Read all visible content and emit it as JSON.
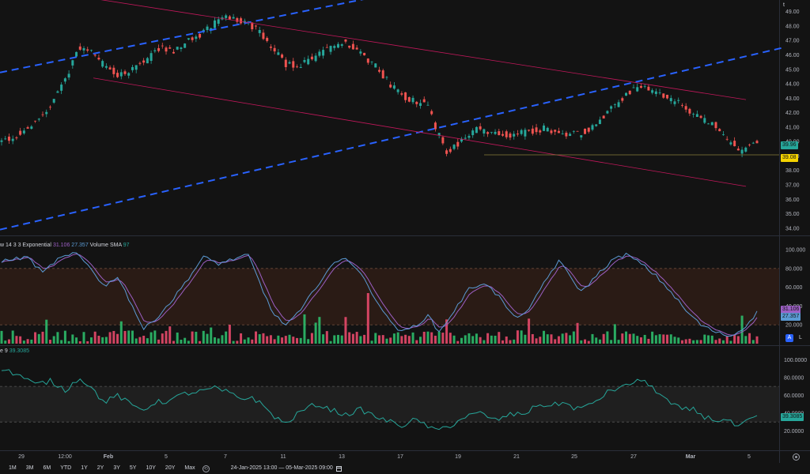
{
  "colors": {
    "background": "#131313",
    "up": "#26a69a",
    "down": "#ef5350",
    "up_bright": "#2ebd6b",
    "down_bright": "#e84a6b",
    "trend_blue": "#2962ff",
    "channel_red": "#c2185b",
    "stoch_k": "#5b9bd5",
    "stoch_d": "#9c5fc4",
    "rsi_line": "#26a69a",
    "stoch_band": "#2a1b15",
    "rsi_band": "#1f1f1f"
  },
  "price_scale": {
    "ticks": [
      "49.00",
      "48.00",
      "47.00",
      "46.00",
      "45.00",
      "44.00",
      "43.00",
      "42.00",
      "41.00",
      "40.00",
      "39.00",
      "38.00",
      "37.00",
      "36.00",
      "35.00",
      "34.00"
    ],
    "last_price": "39.96",
    "level_price": "39.08",
    "top_icon": "t"
  },
  "stoch_pane": {
    "legend_prefix": "w 14 3 3 Exponential",
    "k_value": "31.106",
    "d_value": "27.357",
    "volume_label": "Volume SMA",
    "volume_value": "97",
    "ticks": [
      "100.000",
      "80.000",
      "60.000",
      "40.000",
      "20.000"
    ],
    "badge_k": "31.106",
    "badge_d": "27.357",
    "scale_a": "A",
    "scale_l": "L"
  },
  "rsi_pane": {
    "legend_prefix": "e 9",
    "value": "39.3085",
    "ticks": [
      "100.0000",
      "80.0000",
      "60.0000",
      "40.0000",
      "20.0000"
    ],
    "badge": "39.3085"
  },
  "time_axis": {
    "labels": [
      "29",
      "12:00",
      "Feb",
      "5",
      "7",
      "11",
      "13",
      "17",
      "19",
      "21",
      "25",
      "27",
      "Mar",
      "5"
    ]
  },
  "bottom_bar": {
    "ranges": [
      "1M",
      "3M",
      "6M",
      "YTD",
      "1Y",
      "2Y",
      "3Y",
      "5Y",
      "10Y",
      "20Y",
      "Max"
    ],
    "date_range": "24-Jan-2025 13:00 — 05-Mar-2025 09:00"
  },
  "chart_data": {
    "type": "candlestick",
    "title": "",
    "ylim": [
      33.5,
      49.8
    ],
    "time_range": [
      "24-Jan-2025 13:00",
      "05-Mar-2025 09:00"
    ],
    "grid": false,
    "close_anchors": [
      [
        0,
        40.0
      ],
      [
        10,
        40.5
      ],
      [
        22,
        41.8
      ],
      [
        28,
        43.0
      ],
      [
        35,
        44.5
      ],
      [
        40,
        46.4
      ],
      [
        44,
        46.6
      ],
      [
        48,
        46.2
      ],
      [
        55,
        45.2
      ],
      [
        62,
        44.6
      ],
      [
        70,
        45.0
      ],
      [
        78,
        45.6
      ],
      [
        85,
        46.6
      ],
      [
        92,
        46.3
      ],
      [
        100,
        47.0
      ],
      [
        108,
        47.5
      ],
      [
        115,
        48.3
      ],
      [
        122,
        48.7
      ],
      [
        130,
        48.3
      ],
      [
        138,
        47.6
      ],
      [
        145,
        46.4
      ],
      [
        152,
        45.3
      ],
      [
        160,
        45.3
      ],
      [
        168,
        45.8
      ],
      [
        176,
        46.6
      ],
      [
        184,
        46.9
      ],
      [
        192,
        46.2
      ],
      [
        200,
        45.2
      ],
      [
        208,
        43.9
      ],
      [
        214,
        43.2
      ],
      [
        222,
        42.8
      ],
      [
        228,
        42.5
      ],
      [
        232,
        40.9
      ],
      [
        238,
        39.3
      ],
      [
        246,
        40.1
      ],
      [
        254,
        40.8
      ],
      [
        262,
        40.7
      ],
      [
        270,
        40.4
      ],
      [
        280,
        40.6
      ],
      [
        290,
        40.9
      ],
      [
        300,
        40.5
      ],
      [
        310,
        40.6
      ],
      [
        318,
        41.2
      ],
      [
        326,
        42.2
      ],
      [
        334,
        43.3
      ],
      [
        340,
        43.8
      ],
      [
        346,
        43.6
      ],
      [
        352,
        43.2
      ],
      [
        360,
        42.8
      ],
      [
        368,
        42.1
      ],
      [
        376,
        41.4
      ],
      [
        384,
        40.9
      ],
      [
        390,
        39.9
      ],
      [
        396,
        39.3
      ],
      [
        400,
        39.7
      ],
      [
        404,
        39.96
      ]
    ],
    "channel": {
      "upper_line": [
        [
          1.05,
          49.9
        ],
        [
          943,
          42.9
        ]
      ],
      "lower_line": [
        [
          118,
          44.4
        ],
        [
          943,
          36.9
        ]
      ]
    },
    "trend_lines": {
      "upper": [
        [
          0,
          45.0
        ],
        [
          473,
          50.0
        ]
      ],
      "lower": [
        [
          0,
          33.9
        ],
        [
          990,
          46.5
        ]
      ]
    },
    "horizontal_level": 39.08,
    "stochastic": {
      "k_last": 31.106,
      "d_last": 27.357,
      "upper_band": 80,
      "lower_band": 20,
      "k_anchors": [
        [
          0,
          88
        ],
        [
          14,
          92
        ],
        [
          22,
          75
        ],
        [
          30,
          90
        ],
        [
          40,
          96
        ],
        [
          48,
          80
        ],
        [
          55,
          60
        ],
        [
          62,
          72
        ],
        [
          70,
          40
        ],
        [
          76,
          15
        ],
        [
          84,
          30
        ],
        [
          92,
          48
        ],
        [
          100,
          70
        ],
        [
          108,
          92
        ],
        [
          116,
          85
        ],
        [
          124,
          90
        ],
        [
          132,
          94
        ],
        [
          140,
          55
        ],
        [
          146,
          30
        ],
        [
          152,
          20
        ],
        [
          160,
          35
        ],
        [
          168,
          60
        ],
        [
          176,
          82
        ],
        [
          184,
          92
        ],
        [
          190,
          80
        ],
        [
          198,
          55
        ],
        [
          206,
          28
        ],
        [
          214,
          12
        ],
        [
          222,
          20
        ],
        [
          228,
          30
        ],
        [
          234,
          12
        ],
        [
          242,
          35
        ],
        [
          250,
          58
        ],
        [
          258,
          65
        ],
        [
          266,
          50
        ],
        [
          274,
          28
        ],
        [
          282,
          35
        ],
        [
          290,
          65
        ],
        [
          298,
          88
        ],
        [
          304,
          72
        ],
        [
          310,
          55
        ],
        [
          318,
          72
        ],
        [
          326,
          88
        ],
        [
          334,
          95
        ],
        [
          342,
          85
        ],
        [
          350,
          72
        ],
        [
          358,
          55
        ],
        [
          366,
          35
        ],
        [
          374,
          20
        ],
        [
          382,
          12
        ],
        [
          390,
          8
        ],
        [
          396,
          15
        ],
        [
          404,
          33
        ]
      ]
    },
    "volume_sma": 97,
    "rsi": {
      "last": 39.3085,
      "upper_band": 70,
      "lower_band": 30,
      "anchors": [
        [
          0,
          90
        ],
        [
          10,
          82
        ],
        [
          18,
          72
        ],
        [
          26,
          76
        ],
        [
          34,
          66
        ],
        [
          42,
          80
        ],
        [
          48,
          68
        ],
        [
          55,
          52
        ],
        [
          62,
          60
        ],
        [
          70,
          48
        ],
        [
          76,
          44
        ],
        [
          82,
          52
        ],
        [
          90,
          54
        ],
        [
          98,
          62
        ],
        [
          106,
          64
        ],
        [
          114,
          68
        ],
        [
          120,
          64
        ],
        [
          128,
          56
        ],
        [
          134,
          58
        ],
        [
          140,
          48
        ],
        [
          146,
          36
        ],
        [
          152,
          28
        ],
        [
          160,
          42
        ],
        [
          168,
          50
        ],
        [
          176,
          44
        ],
        [
          184,
          38
        ],
        [
          192,
          44
        ],
        [
          200,
          36
        ],
        [
          208,
          30
        ],
        [
          214,
          26
        ],
        [
          220,
          32
        ],
        [
          226,
          28
        ],
        [
          232,
          20
        ],
        [
          240,
          26
        ],
        [
          248,
          36
        ],
        [
          256,
          40
        ],
        [
          264,
          32
        ],
        [
          272,
          38
        ],
        [
          280,
          40
        ],
        [
          288,
          50
        ],
        [
          294,
          48
        ],
        [
          300,
          52
        ],
        [
          306,
          46
        ],
        [
          312,
          46
        ],
        [
          318,
          54
        ],
        [
          326,
          66
        ],
        [
          334,
          70
        ],
        [
          340,
          78
        ],
        [
          346,
          72
        ],
        [
          352,
          62
        ],
        [
          358,
          50
        ],
        [
          364,
          44
        ],
        [
          370,
          44
        ],
        [
          376,
          36
        ],
        [
          382,
          32
        ],
        [
          388,
          32
        ],
        [
          394,
          24
        ],
        [
          400,
          32
        ],
        [
          406,
          38
        ]
      ]
    }
  }
}
